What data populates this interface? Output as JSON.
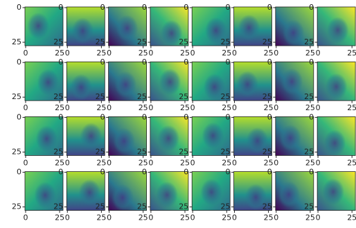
{
  "chart_data": [
    {
      "type": "image",
      "xlim": [
        -0.5,
        27.5
      ],
      "ylim": [
        27.5,
        -0.5
      ],
      "xticks": [
        0,
        25
      ],
      "yticks": [
        0,
        25
      ]
    },
    {
      "type": "image",
      "xlim": [
        -0.5,
        27.5
      ],
      "ylim": [
        27.5,
        -0.5
      ],
      "xticks": [
        0,
        25
      ],
      "yticks": [
        0,
        25
      ]
    },
    {
      "type": "image",
      "xlim": [
        -0.5,
        27.5
      ],
      "ylim": [
        27.5,
        -0.5
      ],
      "xticks": [
        0,
        25
      ],
      "yticks": [
        0,
        25
      ]
    },
    {
      "type": "image",
      "xlim": [
        -0.5,
        27.5
      ],
      "ylim": [
        27.5,
        -0.5
      ],
      "xticks": [
        0,
        25
      ],
      "yticks": [
        0,
        25
      ]
    },
    {
      "type": "image",
      "xlim": [
        -0.5,
        27.5
      ],
      "ylim": [
        27.5,
        -0.5
      ],
      "xticks": [
        0,
        25
      ],
      "yticks": [
        0,
        25
      ]
    },
    {
      "type": "image",
      "xlim": [
        -0.5,
        27.5
      ],
      "ylim": [
        27.5,
        -0.5
      ],
      "xticks": [
        0,
        25
      ],
      "yticks": [
        0,
        25
      ]
    },
    {
      "type": "image",
      "xlim": [
        -0.5,
        27.5
      ],
      "ylim": [
        27.5,
        -0.5
      ],
      "xticks": [
        0,
        25
      ],
      "yticks": [
        0,
        25
      ]
    },
    {
      "type": "image",
      "xlim": [
        -0.5,
        27.5
      ],
      "ylim": [
        27.5,
        -0.5
      ],
      "xticks": [
        0,
        25
      ],
      "yticks": [
        0,
        25
      ]
    },
    {
      "type": "image",
      "xlim": [
        -0.5,
        27.5
      ],
      "ylim": [
        27.5,
        -0.5
      ],
      "xticks": [
        0,
        25
      ],
      "yticks": [
        0,
        25
      ]
    },
    {
      "type": "image",
      "xlim": [
        -0.5,
        27.5
      ],
      "ylim": [
        27.5,
        -0.5
      ],
      "xticks": [
        0,
        25
      ],
      "yticks": [
        0,
        25
      ]
    },
    {
      "type": "image",
      "xlim": [
        -0.5,
        27.5
      ],
      "ylim": [
        27.5,
        -0.5
      ],
      "xticks": [
        0,
        25
      ],
      "yticks": [
        0,
        25
      ]
    },
    {
      "type": "image",
      "xlim": [
        -0.5,
        27.5
      ],
      "ylim": [
        27.5,
        -0.5
      ],
      "xticks": [
        0,
        25
      ],
      "yticks": [
        0,
        25
      ]
    },
    {
      "type": "image",
      "xlim": [
        -0.5,
        27.5
      ],
      "ylim": [
        27.5,
        -0.5
      ],
      "xticks": [
        0,
        25
      ],
      "yticks": [
        0,
        25
      ]
    },
    {
      "type": "image",
      "xlim": [
        -0.5,
        27.5
      ],
      "ylim": [
        27.5,
        -0.5
      ],
      "xticks": [
        0,
        25
      ],
      "yticks": [
        0,
        25
      ]
    },
    {
      "type": "image",
      "xlim": [
        -0.5,
        27.5
      ],
      "ylim": [
        27.5,
        -0.5
      ],
      "xticks": [
        0,
        25
      ],
      "yticks": [
        0,
        25
      ]
    },
    {
      "type": "image",
      "xlim": [
        -0.5,
        27.5
      ],
      "ylim": [
        27.5,
        -0.5
      ],
      "xticks": [
        0,
        25
      ],
      "yticks": [
        0,
        25
      ]
    },
    {
      "type": "image",
      "xlim": [
        -0.5,
        27.5
      ],
      "ylim": [
        27.5,
        -0.5
      ],
      "xticks": [
        0,
        25
      ],
      "yticks": [
        0,
        25
      ]
    },
    {
      "type": "image",
      "xlim": [
        -0.5,
        27.5
      ],
      "ylim": [
        27.5,
        -0.5
      ],
      "xticks": [
        0,
        25
      ],
      "yticks": [
        0,
        25
      ]
    },
    {
      "type": "image",
      "xlim": [
        -0.5,
        27.5
      ],
      "ylim": [
        27.5,
        -0.5
      ],
      "xticks": [
        0,
        25
      ],
      "yticks": [
        0,
        25
      ]
    },
    {
      "type": "image",
      "xlim": [
        -0.5,
        27.5
      ],
      "ylim": [
        27.5,
        -0.5
      ],
      "xticks": [
        0,
        25
      ],
      "yticks": [
        0,
        25
      ]
    },
    {
      "type": "image",
      "xlim": [
        -0.5,
        27.5
      ],
      "ylim": [
        27.5,
        -0.5
      ],
      "xticks": [
        0,
        25
      ],
      "yticks": [
        0,
        25
      ]
    },
    {
      "type": "image",
      "xlim": [
        -0.5,
        27.5
      ],
      "ylim": [
        27.5,
        -0.5
      ],
      "xticks": [
        0,
        25
      ],
      "yticks": [
        0,
        25
      ]
    },
    {
      "type": "image",
      "xlim": [
        -0.5,
        27.5
      ],
      "ylim": [
        27.5,
        -0.5
      ],
      "xticks": [
        0,
        25
      ],
      "yticks": [
        0,
        25
      ]
    },
    {
      "type": "image",
      "xlim": [
        -0.5,
        27.5
      ],
      "ylim": [
        27.5,
        -0.5
      ],
      "xticks": [
        0,
        25
      ],
      "yticks": [
        0,
        25
      ]
    },
    {
      "type": "image",
      "xlim": [
        -0.5,
        27.5
      ],
      "ylim": [
        27.5,
        -0.5
      ],
      "xticks": [
        0,
        25
      ],
      "yticks": [
        0,
        25
      ]
    },
    {
      "type": "image",
      "xlim": [
        -0.5,
        27.5
      ],
      "ylim": [
        27.5,
        -0.5
      ],
      "xticks": [
        0,
        25
      ],
      "yticks": [
        0,
        25
      ]
    },
    {
      "type": "image",
      "xlim": [
        -0.5,
        27.5
      ],
      "ylim": [
        27.5,
        -0.5
      ],
      "xticks": [
        0,
        25
      ],
      "yticks": [
        0,
        25
      ]
    },
    {
      "type": "image",
      "xlim": [
        -0.5,
        27.5
      ],
      "ylim": [
        27.5,
        -0.5
      ],
      "xticks": [
        0,
        25
      ],
      "yticks": [
        0,
        25
      ]
    },
    {
      "type": "image",
      "xlim": [
        -0.5,
        27.5
      ],
      "ylim": [
        27.5,
        -0.5
      ],
      "xticks": [
        0,
        25
      ],
      "yticks": [
        0,
        25
      ]
    },
    {
      "type": "image",
      "xlim": [
        -0.5,
        27.5
      ],
      "ylim": [
        27.5,
        -0.5
      ],
      "xticks": [
        0,
        25
      ],
      "yticks": [
        0,
        25
      ]
    },
    {
      "type": "image",
      "xlim": [
        -0.5,
        27.5
      ],
      "ylim": [
        27.5,
        -0.5
      ],
      "xticks": [
        0,
        25
      ],
      "yticks": [
        0,
        25
      ]
    },
    {
      "type": "image",
      "xlim": [
        -0.5,
        27.5
      ],
      "ylim": [
        27.5,
        -0.5
      ],
      "xticks": [
        0,
        25
      ],
      "yticks": [
        0,
        25
      ]
    }
  ]
}
